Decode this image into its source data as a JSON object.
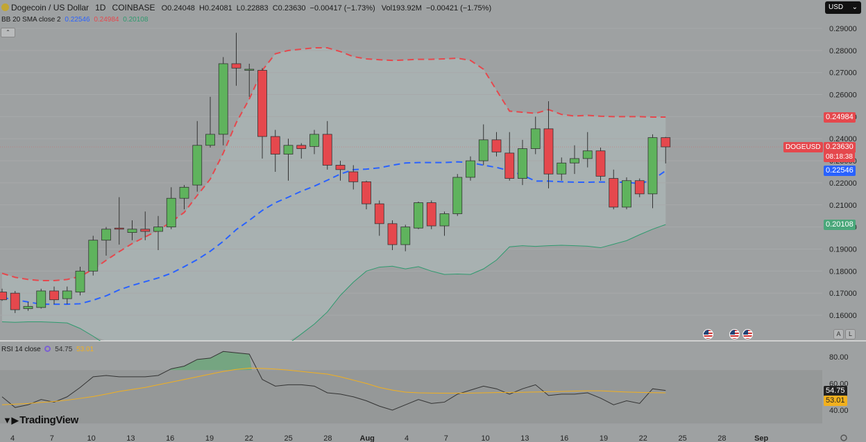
{
  "header": {
    "title": "Dogecoin / US Dollar",
    "interval": "1D",
    "exchange": "COINBASE",
    "open": "O0.24048",
    "high": "H0.24081",
    "low": "L0.22883",
    "close": "C0.23630",
    "change": "−0.00417 (−1.73%)",
    "volume": "Vol193.92M",
    "vol_change": "−0.00421 (−1.75%)"
  },
  "bb_legend": {
    "label": "BB 20 SMA close 2",
    "basis": "0.22546",
    "upper": "0.24984",
    "lower": "0.20108"
  },
  "rsi_legend": {
    "label": "RSI 14 close",
    "rsi": "54.75",
    "ma": "53.01"
  },
  "currency": {
    "label": "USD",
    "icon": "chevron-down-icon"
  },
  "price_tags": {
    "upper": "0.24984",
    "symbol": "DOGEUSD",
    "last": "0.23630",
    "countdown": "08:18:38",
    "basis": "0.22546",
    "lower": "0.20108",
    "rsi": "54.75",
    "rsi_ma": "53.01"
  },
  "scale_buttons": {
    "auto": "A",
    "log": "L"
  },
  "brand": "TradingView",
  "colors": {
    "up": "#5fb35d",
    "down": "#e5484d",
    "bb_upper": "#e5484d",
    "bb_basis": "#2962ff",
    "bb_lower": "#2e9a6e",
    "rsi": "#333333",
    "rsi_ma": "#f2b01e",
    "tag_red": "#e5484d",
    "tag_blue": "#2962ff",
    "tag_green": "#4aa77a",
    "tag_yellow": "#f2b01e"
  },
  "chart_data": [
    {
      "type": "candlestick",
      "title": "Dogecoin / US Dollar",
      "ylim": [
        0.154,
        0.293
      ],
      "y_ticks": [
        "0.29000",
        "0.28000",
        "0.27000",
        "0.26000",
        "0.25000",
        "0.24000",
        "0.23000",
        "0.22000",
        "0.21000",
        "0.20000",
        "0.19000",
        "0.18000",
        "0.17000",
        "0.16000"
      ],
      "x_ticks": [
        "4",
        "7",
        "10",
        "13",
        "16",
        "19",
        "22",
        "25",
        "28",
        "Aug",
        "4",
        "7",
        "10",
        "13",
        "16",
        "19",
        "22",
        "25",
        "28",
        "Sep"
      ],
      "candles": [
        {
          "o": 0.1705,
          "h": 0.172,
          "l": 0.1665,
          "c": 0.167
        },
        {
          "o": 0.17,
          "h": 0.171,
          "l": 0.161,
          "c": 0.1625
        },
        {
          "o": 0.163,
          "h": 0.166,
          "l": 0.162,
          "c": 0.164
        },
        {
          "o": 0.1635,
          "h": 0.172,
          "l": 0.163,
          "c": 0.171
        },
        {
          "o": 0.171,
          "h": 0.173,
          "l": 0.165,
          "c": 0.167
        },
        {
          "o": 0.1675,
          "h": 0.173,
          "l": 0.165,
          "c": 0.171
        },
        {
          "o": 0.1705,
          "h": 0.182,
          "l": 0.169,
          "c": 0.18
        },
        {
          "o": 0.18,
          "h": 0.196,
          "l": 0.178,
          "c": 0.194
        },
        {
          "o": 0.194,
          "h": 0.2,
          "l": 0.187,
          "c": 0.199
        },
        {
          "o": 0.1995,
          "h": 0.2135,
          "l": 0.192,
          "c": 0.199
        },
        {
          "o": 0.1975,
          "h": 0.203,
          "l": 0.194,
          "c": 0.199
        },
        {
          "o": 0.199,
          "h": 0.207,
          "l": 0.194,
          "c": 0.198
        },
        {
          "o": 0.198,
          "h": 0.205,
          "l": 0.1895,
          "c": 0.2
        },
        {
          "o": 0.2,
          "h": 0.218,
          "l": 0.199,
          "c": 0.213
        },
        {
          "o": 0.213,
          "h": 0.219,
          "l": 0.208,
          "c": 0.218
        },
        {
          "o": 0.219,
          "h": 0.248,
          "l": 0.216,
          "c": 0.237
        },
        {
          "o": 0.237,
          "h": 0.259,
          "l": 0.236,
          "c": 0.242
        },
        {
          "o": 0.242,
          "h": 0.277,
          "l": 0.237,
          "c": 0.274
        },
        {
          "o": 0.274,
          "h": 0.288,
          "l": 0.264,
          "c": 0.272
        },
        {
          "o": 0.271,
          "h": 0.274,
          "l": 0.259,
          "c": 0.2715
        },
        {
          "o": 0.271,
          "h": 0.272,
          "l": 0.231,
          "c": 0.241
        },
        {
          "o": 0.241,
          "h": 0.244,
          "l": 0.225,
          "c": 0.233
        },
        {
          "o": 0.233,
          "h": 0.24,
          "l": 0.221,
          "c": 0.237
        },
        {
          "o": 0.237,
          "h": 0.238,
          "l": 0.231,
          "c": 0.2355
        },
        {
          "o": 0.2365,
          "h": 0.244,
          "l": 0.233,
          "c": 0.242
        },
        {
          "o": 0.242,
          "h": 0.248,
          "l": 0.226,
          "c": 0.228
        },
        {
          "o": 0.228,
          "h": 0.23,
          "l": 0.221,
          "c": 0.226
        },
        {
          "o": 0.225,
          "h": 0.228,
          "l": 0.217,
          "c": 0.2205
        },
        {
          "o": 0.2205,
          "h": 0.221,
          "l": 0.208,
          "c": 0.2105
        },
        {
          "o": 0.2105,
          "h": 0.212,
          "l": 0.196,
          "c": 0.2015
        },
        {
          "o": 0.2015,
          "h": 0.203,
          "l": 0.1895,
          "c": 0.192
        },
        {
          "o": 0.192,
          "h": 0.201,
          "l": 0.189,
          "c": 0.2
        },
        {
          "o": 0.1995,
          "h": 0.2115,
          "l": 0.199,
          "c": 0.211
        },
        {
          "o": 0.211,
          "h": 0.212,
          "l": 0.199,
          "c": 0.2005
        },
        {
          "o": 0.2005,
          "h": 0.207,
          "l": 0.196,
          "c": 0.206
        },
        {
          "o": 0.206,
          "h": 0.224,
          "l": 0.205,
          "c": 0.2225
        },
        {
          "o": 0.2225,
          "h": 0.232,
          "l": 0.221,
          "c": 0.23
        },
        {
          "o": 0.23,
          "h": 0.2465,
          "l": 0.228,
          "c": 0.2395
        },
        {
          "o": 0.2395,
          "h": 0.243,
          "l": 0.232,
          "c": 0.234
        },
        {
          "o": 0.2335,
          "h": 0.243,
          "l": 0.221,
          "c": 0.222
        },
        {
          "o": 0.222,
          "h": 0.2395,
          "l": 0.219,
          "c": 0.2355
        },
        {
          "o": 0.2355,
          "h": 0.25,
          "l": 0.233,
          "c": 0.2445
        },
        {
          "o": 0.2445,
          "h": 0.257,
          "l": 0.2175,
          "c": 0.224
        },
        {
          "o": 0.224,
          "h": 0.2315,
          "l": 0.221,
          "c": 0.229
        },
        {
          "o": 0.229,
          "h": 0.237,
          "l": 0.224,
          "c": 0.231
        },
        {
          "o": 0.231,
          "h": 0.243,
          "l": 0.227,
          "c": 0.2345
        },
        {
          "o": 0.2345,
          "h": 0.236,
          "l": 0.221,
          "c": 0.223
        },
        {
          "o": 0.222,
          "h": 0.226,
          "l": 0.208,
          "c": 0.209
        },
        {
          "o": 0.209,
          "h": 0.2225,
          "l": 0.208,
          "c": 0.221
        },
        {
          "o": 0.221,
          "h": 0.222,
          "l": 0.2135,
          "c": 0.215
        },
        {
          "o": 0.215,
          "h": 0.242,
          "l": 0.2085,
          "c": 0.2405
        },
        {
          "o": 0.2405,
          "h": 0.2408,
          "l": 0.2288,
          "c": 0.2363
        }
      ],
      "bb_upper": [
        0.179,
        0.1772,
        0.1762,
        0.1757,
        0.1757,
        0.1762,
        0.1776,
        0.1808,
        0.1849,
        0.1888,
        0.1925,
        0.1955,
        0.1985,
        0.2023,
        0.2066,
        0.2143,
        0.2217,
        0.2335,
        0.2473,
        0.258,
        0.271,
        0.2785,
        0.28,
        0.2806,
        0.2812,
        0.2812,
        0.2795,
        0.2772,
        0.2762,
        0.2758,
        0.2755,
        0.2757,
        0.276,
        0.276,
        0.2762,
        0.2765,
        0.2755,
        0.2715,
        0.262,
        0.2525,
        0.252,
        0.2515,
        0.2532,
        0.251,
        0.2503,
        0.2506,
        0.2502,
        0.25,
        0.25,
        0.25,
        0.2498,
        0.2498
      ],
      "bb_basis": [
        0.168,
        0.167,
        0.166,
        0.165,
        0.165,
        0.165,
        0.1652,
        0.1668,
        0.1688,
        0.1715,
        0.1735,
        0.1752,
        0.1769,
        0.179,
        0.182,
        0.1852,
        0.189,
        0.1935,
        0.1988,
        0.203,
        0.2075,
        0.211,
        0.2135,
        0.2162,
        0.2185,
        0.2212,
        0.224,
        0.226,
        0.2262,
        0.2268,
        0.228,
        0.229,
        0.2292,
        0.2292,
        0.2292,
        0.2295,
        0.2292,
        0.228,
        0.227,
        0.2255,
        0.2235,
        0.2208,
        0.2208,
        0.2205,
        0.2203,
        0.2203,
        0.2204,
        0.2203,
        0.2203,
        0.2196,
        0.2214,
        0.2255
      ],
      "bb_lower": [
        0.157,
        0.1568,
        0.157,
        0.157,
        0.1568,
        0.1565,
        0.154,
        0.1505,
        0.1465,
        0.144,
        0.1415,
        0.139,
        0.135,
        0.133,
        0.1325,
        0.1315,
        0.132,
        0.133,
        0.135,
        0.138,
        0.142,
        0.1435,
        0.147,
        0.1515,
        0.156,
        0.1615,
        0.169,
        0.175,
        0.18,
        0.1818,
        0.1822,
        0.181,
        0.182,
        0.18,
        0.1785,
        0.1787,
        0.1785,
        0.181,
        0.185,
        0.191,
        0.1915,
        0.1912,
        0.1915,
        0.1917,
        0.1915,
        0.1913,
        0.1906,
        0.1922,
        0.1938,
        0.1965,
        0.199,
        0.2011
      ]
    },
    {
      "type": "line",
      "title": "RSI 14 close",
      "ylim": [
        36,
        86
      ],
      "y_ticks": [
        "80.00",
        "60.00",
        "40.00"
      ],
      "band": [
        30,
        70
      ],
      "series": [
        {
          "name": "RSI",
          "values": [
            50,
            42,
            44,
            48,
            46,
            50,
            57,
            65,
            66,
            65,
            65,
            65,
            66,
            71,
            73,
            78,
            79,
            84,
            83,
            82,
            63,
            58,
            59,
            59,
            58,
            53,
            52,
            50,
            47,
            43,
            40,
            44,
            48,
            45,
            46,
            52,
            55,
            58,
            56,
            52,
            56,
            59,
            51,
            52,
            52,
            53,
            49,
            44,
            47,
            45,
            56,
            54.75
          ]
        },
        {
          "name": "RSI-based MA",
          "values": [
            44,
            44.5,
            45,
            45.8,
            46.5,
            47.5,
            48.8,
            50.2,
            52,
            54,
            55.5,
            57,
            59,
            61,
            63,
            65,
            67,
            69,
            70.5,
            71.5,
            71.3,
            70.8,
            70,
            69,
            68,
            67,
            65,
            62.5,
            60,
            57,
            55,
            53.5,
            53,
            52.8,
            52.7,
            52.7,
            52.8,
            53,
            53.2,
            53.3,
            53.4,
            53.6,
            53.8,
            54,
            54.3,
            54.5,
            54.5,
            54,
            53.6,
            53.3,
            53.1,
            53.01
          ]
        }
      ]
    }
  ]
}
